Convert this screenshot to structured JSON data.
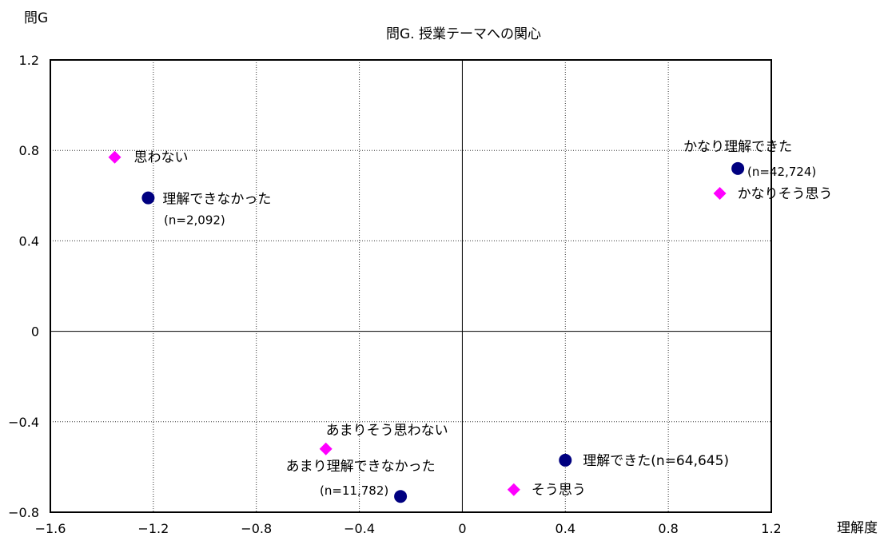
{
  "corner_label": "問G",
  "chart_data": {
    "type": "scatter",
    "title": "問G. 授業テーマへの関心",
    "xlabel": "理解度",
    "ylabel": "",
    "xlim": [
      -1.6,
      1.2
    ],
    "ylim": [
      -0.8,
      1.2
    ],
    "x_ticks": [
      -1.6,
      -1.2,
      -0.8,
      -0.4,
      0,
      0.4,
      0.8,
      1.2
    ],
    "y_ticks": [
      -0.8,
      -0.4,
      0,
      0.4,
      0.8,
      1.2
    ],
    "x_tick_labels": [
      "−1.6",
      "−1.2",
      "−0.8",
      "−0.4",
      "0",
      "0.4",
      "0.8",
      "1.2"
    ],
    "y_tick_labels": [
      "−0.8",
      "−0.4",
      "0",
      "0.4",
      "0.8",
      "1.2"
    ],
    "grid": true,
    "series": [
      {
        "marker": "circle",
        "color": "#000080",
        "points": [
          {
            "x": 1.07,
            "y": 0.72,
            "label": "かなり理解できた",
            "sublabel": "(n=42,724)"
          },
          {
            "x": 0.4,
            "y": -0.57,
            "label": "理解できた(n=64,645)",
            "sublabel": ""
          },
          {
            "x": -0.24,
            "y": -0.73,
            "label": "あまり理解できなかった",
            "sublabel": "(n=11,782)"
          },
          {
            "x": -1.22,
            "y": 0.59,
            "label": "理解できなかった",
            "sublabel": "(n=2,092)"
          }
        ]
      },
      {
        "marker": "diamond",
        "color": "#ff00ff",
        "points": [
          {
            "x": 1.0,
            "y": 0.61,
            "label": "かなりそう思う",
            "sublabel": ""
          },
          {
            "x": 0.2,
            "y": -0.7,
            "label": "そう思う",
            "sublabel": ""
          },
          {
            "x": -0.53,
            "y": -0.52,
            "label": "あまりそう思わない",
            "sublabel": ""
          },
          {
            "x": -1.35,
            "y": 0.77,
            "label": "思わない",
            "sublabel": ""
          }
        ]
      }
    ]
  }
}
